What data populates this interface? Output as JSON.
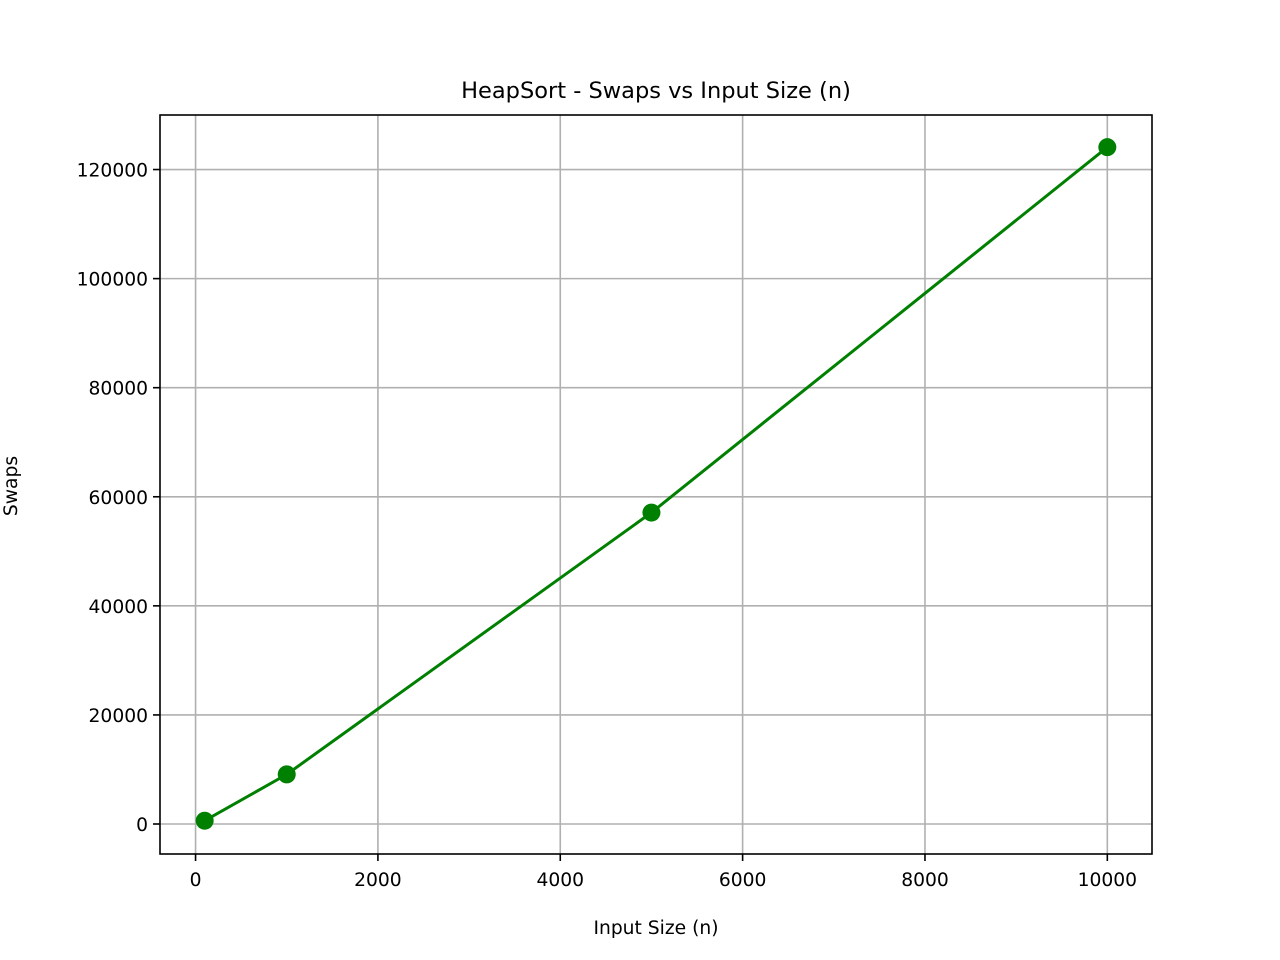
{
  "chart_data": {
    "type": "line",
    "title": "HeapSort - Swaps vs Input Size (n)",
    "xlabel": "Input Size (n)",
    "ylabel": "Swaps",
    "xlim": [
      -390,
      10490
    ],
    "ylim": [
      -5500,
      130000
    ],
    "xticks": [
      0,
      2000,
      4000,
      6000,
      8000,
      10000
    ],
    "yticks": [
      0,
      20000,
      40000,
      60000,
      80000,
      100000,
      120000
    ],
    "grid": true,
    "series": [
      {
        "color": "#008000",
        "marker": "circle",
        "points": [
          {
            "x": 100,
            "y": 600
          },
          {
            "x": 1000,
            "y": 9100
          },
          {
            "x": 5000,
            "y": 57100
          },
          {
            "x": 10000,
            "y": 124100
          }
        ]
      }
    ]
  }
}
